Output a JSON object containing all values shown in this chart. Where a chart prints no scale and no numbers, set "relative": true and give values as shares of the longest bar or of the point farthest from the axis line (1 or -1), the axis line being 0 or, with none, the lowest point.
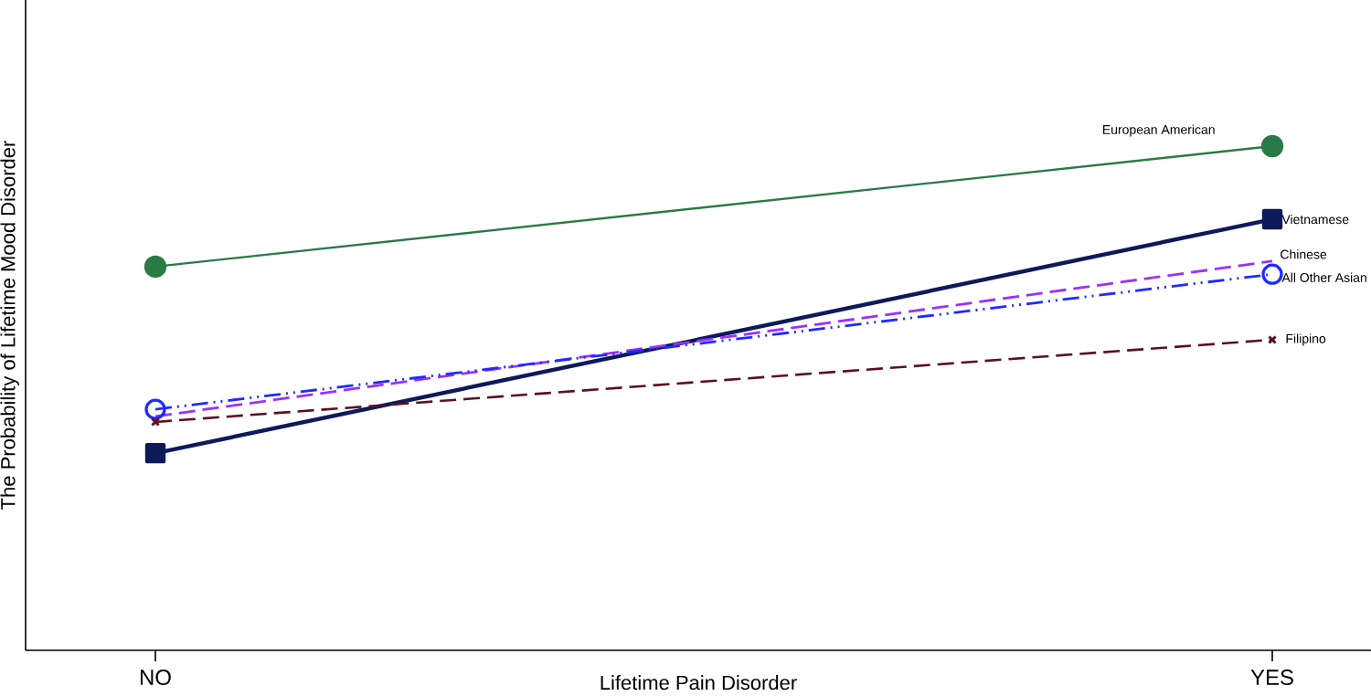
{
  "chart_data": {
    "type": "line",
    "relative": true,
    "xlabel": "Lifetime Pain Disorder",
    "ylabel": "The Probability of Lifetime Mood Disorder",
    "categories": [
      "NO",
      "YES"
    ],
    "legend": false,
    "grid": false,
    "series": [
      {
        "name": "European American",
        "color": "#2a7a48",
        "values": [
          0.761,
          1
        ],
        "marker": "circle",
        "line_style": "solid"
      },
      {
        "name": "Vietnamese",
        "color": "#0c1a5a",
        "values": [
          0.391,
          0.855
        ],
        "marker": "square",
        "line_style": "solid"
      },
      {
        "name": "Chinese",
        "color": "#9b30ff",
        "values": [
          0.464,
          0.772
        ],
        "marker": "none",
        "line_style": "dashed"
      },
      {
        "name": "All Other Asian",
        "color": "#1f2bff",
        "values": [
          0.478,
          0.746
        ],
        "marker": "circle",
        "line_style": "dotted"
      },
      {
        "name": "Filipino",
        "color": "#5c1020",
        "values": [
          0.453,
          0.616
        ],
        "marker": "cross",
        "line_style": "dashed"
      }
    ]
  }
}
